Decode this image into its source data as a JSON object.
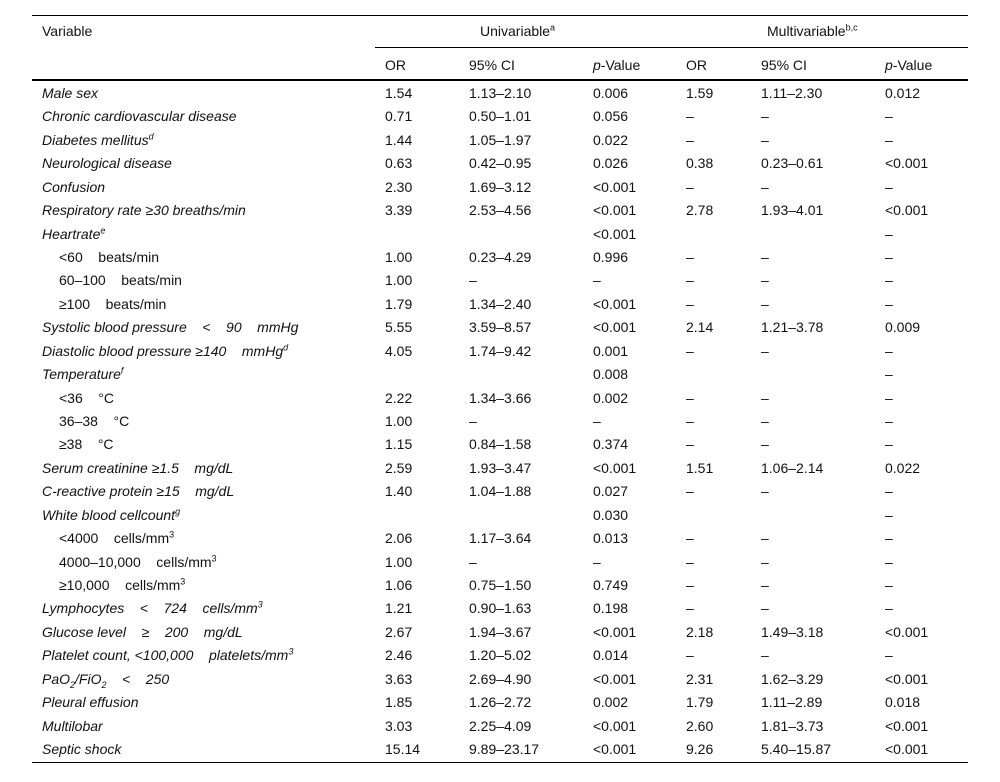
{
  "header": {
    "variable": "Variable",
    "univariable": "Univariable",
    "univariable_sup": "a",
    "multivariable": "Multivariable",
    "multivariable_sup": "b,c",
    "cols": [
      {
        "t": "OR"
      },
      {
        "t": "95% CI"
      },
      {
        "p": "p",
        "t": "-Value"
      },
      {
        "t": "OR"
      },
      {
        "t": "95% CI"
      },
      {
        "p": "p",
        "t": "-Value"
      }
    ]
  },
  "rows": [
    {
      "label": [
        {
          "t": "Male sex"
        }
      ],
      "it": true,
      "v": [
        "1.54",
        "1.13–2.10",
        "0.006",
        "1.59",
        "1.11–2.30",
        "0.012"
      ]
    },
    {
      "label": [
        {
          "t": "Chronic cardiovascular disease"
        }
      ],
      "it": true,
      "v": [
        "0.71",
        "0.50–1.01",
        "0.056",
        "–",
        "–",
        "–"
      ]
    },
    {
      "label": [
        {
          "t": "Diabetes mellitus"
        },
        {
          "t": "d",
          "s": "sup"
        }
      ],
      "it": true,
      "v": [
        "1.44",
        "1.05–1.97",
        "0.022",
        "–",
        "–",
        "–"
      ]
    },
    {
      "label": [
        {
          "t": "Neurological disease"
        }
      ],
      "it": true,
      "v": [
        "0.63",
        "0.42–0.95",
        "0.026",
        "0.38",
        "0.23–0.61",
        "<0.001"
      ]
    },
    {
      "label": [
        {
          "t": "Confusion"
        }
      ],
      "it": true,
      "v": [
        "2.30",
        "1.69–3.12",
        "<0.001",
        "–",
        "–",
        "–"
      ]
    },
    {
      "label": [
        {
          "t": "Respiratory rate ≥30 breaths/min"
        }
      ],
      "it": true,
      "v": [
        "3.39",
        "2.53–4.56",
        "<0.001",
        "2.78",
        "1.93–4.01",
        "<0.001"
      ]
    },
    {
      "label": [
        {
          "t": "Heartrate"
        },
        {
          "t": "e",
          "s": "sup"
        }
      ],
      "it": true,
      "v": [
        "",
        "",
        "<0.001",
        "",
        "",
        "–"
      ]
    },
    {
      "label": [
        {
          "t": "<60    beats/min"
        }
      ],
      "sub": true,
      "v": [
        "1.00",
        "0.23–4.29",
        "0.996",
        "–",
        "–",
        "–"
      ]
    },
    {
      "label": [
        {
          "t": "60–100    beats/min"
        }
      ],
      "sub": true,
      "v": [
        "1.00",
        "–",
        "–",
        "–",
        "–",
        "–"
      ]
    },
    {
      "label": [
        {
          "t": "≥100    beats/min"
        }
      ],
      "sub": true,
      "v": [
        "1.79",
        "1.34–2.40",
        "<0.001",
        "–",
        "–",
        "–"
      ]
    },
    {
      "label": [
        {
          "t": "Systolic blood pressure    <    90    mmHg"
        }
      ],
      "it": true,
      "v": [
        "5.55",
        "3.59–8.57",
        "<0.001",
        "2.14",
        "1.21–3.78",
        "0.009"
      ]
    },
    {
      "label": [
        {
          "t": "Diastolic blood pressure ≥140    mmHg"
        },
        {
          "t": "d",
          "s": "sup"
        }
      ],
      "it": true,
      "v": [
        "4.05",
        "1.74–9.42",
        "0.001",
        "–",
        "–",
        "–"
      ]
    },
    {
      "label": [
        {
          "t": "Temperature"
        },
        {
          "t": "f",
          "s": "sup"
        }
      ],
      "it": true,
      "v": [
        "",
        "",
        "0.008",
        "",
        "",
        "–"
      ]
    },
    {
      "label": [
        {
          "t": "<36    °C"
        }
      ],
      "sub": true,
      "v": [
        "2.22",
        "1.34–3.66",
        "0.002",
        "–",
        "–",
        "–"
      ]
    },
    {
      "label": [
        {
          "t": "36–38    °C"
        }
      ],
      "sub": true,
      "v": [
        "1.00",
        "–",
        "–",
        "–",
        "–",
        "–"
      ]
    },
    {
      "label": [
        {
          "t": "≥38    °C"
        }
      ],
      "sub": true,
      "v": [
        "1.15",
        "0.84–1.58",
        "0.374",
        "–",
        "–",
        "–"
      ]
    },
    {
      "label": [
        {
          "t": "Serum creatinine ≥1.5    mg/dL"
        }
      ],
      "it": true,
      "v": [
        "2.59",
        "1.93–3.47",
        "<0.001",
        "1.51",
        "1.06–2.14",
        "0.022"
      ]
    },
    {
      "label": [
        {
          "t": "C-reactive protein ≥15    mg/dL"
        }
      ],
      "it": true,
      "v": [
        "1.40",
        "1.04–1.88",
        "0.027",
        "–",
        "–",
        "–"
      ]
    },
    {
      "label": [
        {
          "t": "White blood cellcount"
        },
        {
          "t": "g",
          "s": "sup"
        }
      ],
      "it": true,
      "v": [
        "",
        "",
        "0.030",
        "",
        "",
        "–"
      ]
    },
    {
      "label": [
        {
          "t": "<4000    cells/mm"
        },
        {
          "t": "3",
          "s": "sup"
        }
      ],
      "sub": true,
      "v": [
        "2.06",
        "1.17–3.64",
        "0.013",
        "–",
        "–",
        "–"
      ]
    },
    {
      "label": [
        {
          "t": "4000–10,000    cells/mm"
        },
        {
          "t": "3",
          "s": "sup"
        }
      ],
      "sub": true,
      "v": [
        "1.00",
        "–",
        "–",
        "–",
        "–",
        "–"
      ]
    },
    {
      "label": [
        {
          "t": "≥10,000    cells/mm"
        },
        {
          "t": "3",
          "s": "sup"
        }
      ],
      "sub": true,
      "v": [
        "1.06",
        "0.75–1.50",
        "0.749",
        "–",
        "–",
        "–"
      ]
    },
    {
      "label": [
        {
          "t": "Lymphocytes    <    724    cells/mm"
        },
        {
          "t": "3",
          "s": "sup"
        }
      ],
      "it": true,
      "v": [
        "1.21",
        "0.90–1.63",
        "0.198",
        "–",
        "–",
        "–"
      ]
    },
    {
      "label": [
        {
          "t": "Glucose level    ≥    200    mg/dL"
        }
      ],
      "it": true,
      "v": [
        "2.67",
        "1.94–3.67",
        "<0.001",
        "2.18",
        "1.49–3.18",
        "<0.001"
      ]
    },
    {
      "label": [
        {
          "t": "Platelet count, <100,000    platelets/mm"
        },
        {
          "t": "3",
          "s": "sup"
        }
      ],
      "it": true,
      "v": [
        "2.46",
        "1.20–5.02",
        "0.014",
        "–",
        "–",
        "–"
      ]
    },
    {
      "label": [
        {
          "t": "PaO"
        },
        {
          "t": "2",
          "s": "sub"
        },
        {
          "t": "/FiO"
        },
        {
          "t": "2",
          "s": "sub"
        },
        {
          "t": "    <    250"
        }
      ],
      "it": true,
      "v": [
        "3.63",
        "2.69–4.90",
        "<0.001",
        "2.31",
        "1.62–3.29",
        "<0.001"
      ]
    },
    {
      "label": [
        {
          "t": "Pleural effusion"
        }
      ],
      "it": true,
      "v": [
        "1.85",
        "1.26–2.72",
        "0.002",
        "1.79",
        "1.11–2.89",
        "0.018"
      ]
    },
    {
      "label": [
        {
          "t": "Multilobar"
        }
      ],
      "it": true,
      "v": [
        "3.03",
        "2.25–4.09",
        "<0.001",
        "2.60",
        "1.81–3.73",
        "<0.001"
      ]
    },
    {
      "label": [
        {
          "t": "Septic shock"
        }
      ],
      "it": true,
      "v": [
        "15.14",
        "9.89–23.17",
        "<0.001",
        "9.26",
        "5.40–15.87",
        "<0.001"
      ]
    }
  ]
}
